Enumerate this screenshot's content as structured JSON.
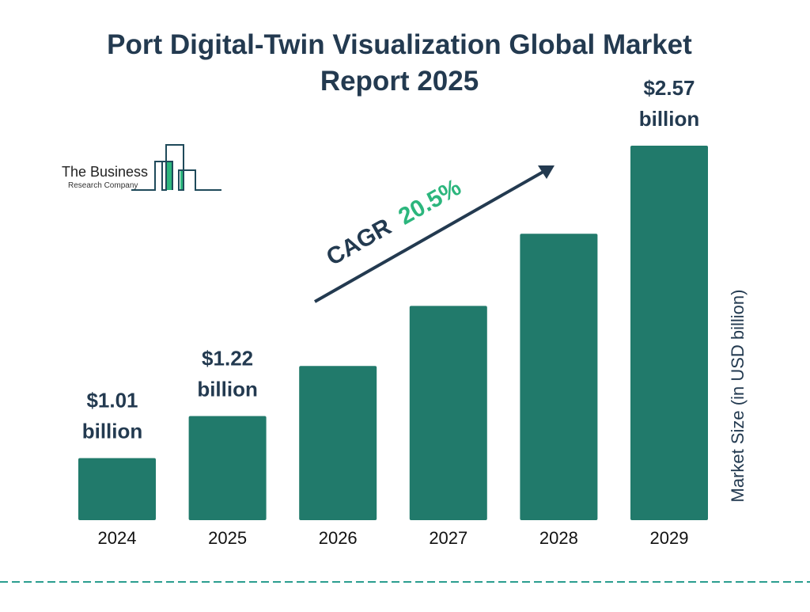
{
  "chart_data": {
    "type": "bar",
    "title_lines": [
      "Port Digital-Twin Visualization Global Market",
      "Report 2025"
    ],
    "categories": [
      "2024",
      "2025",
      "2026",
      "2027",
      "2028",
      "2029"
    ],
    "values": [
      1.01,
      1.22,
      1.47,
      1.77,
      2.13,
      2.57
    ],
    "data_labels": [
      {
        "index": 0,
        "lines": [
          "$1.01",
          "billion"
        ]
      },
      {
        "index": 1,
        "lines": [
          "$1.22",
          "billion"
        ]
      },
      {
        "index": 5,
        "lines": [
          "$2.57",
          "billion"
        ]
      }
    ],
    "ylabel": "Market Size (in USD billion)",
    "xlabel": "",
    "ylim": [
      0.7,
      2.57
    ],
    "grid": false,
    "annotation": {
      "label": "CAGR",
      "value": "20.5%"
    },
    "colors": {
      "bar": "#217a6b",
      "text": "#233a50",
      "accent": "#2cb67d",
      "divider": "#2a9d8f"
    }
  },
  "logo": {
    "line1": "The Business",
    "line2": "Research Company"
  }
}
